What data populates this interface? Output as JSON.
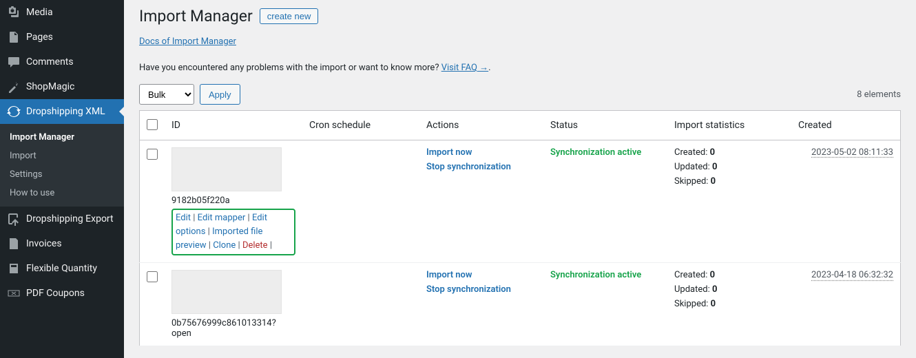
{
  "sidebar": {
    "items": [
      {
        "name": "media",
        "label": "Media",
        "icon": "media"
      },
      {
        "name": "pages",
        "label": "Pages",
        "icon": "page"
      },
      {
        "name": "comments",
        "label": "Comments",
        "icon": "comment"
      },
      {
        "name": "shopmagic",
        "label": "ShopMagic",
        "icon": "wand"
      },
      {
        "name": "dropshipping-xml",
        "label": "Dropshipping XML",
        "icon": "sync",
        "active": true
      },
      {
        "name": "dropshipping-export",
        "label": "Dropshipping Export",
        "icon": "export"
      },
      {
        "name": "invoices",
        "label": "Invoices",
        "icon": "doc"
      },
      {
        "name": "flexible-quantity",
        "label": "Flexible Quantity",
        "icon": "calc"
      },
      {
        "name": "pdf-coupons",
        "label": "PDF Coupons",
        "icon": "coupon"
      }
    ],
    "submenu": [
      {
        "label": "Import Manager",
        "current": true
      },
      {
        "label": "Import",
        "current": false
      },
      {
        "label": "Settings",
        "current": false
      },
      {
        "label": "How to use",
        "current": false
      }
    ]
  },
  "header": {
    "title": "Import Manager",
    "create_label": "create new",
    "docs_label": "Docs of Import Manager",
    "desc_pre": "Have you encountered any problems with the import or want to know more? ",
    "faq_label": "Visit FAQ →"
  },
  "toolbar": {
    "bulk_label": "Bulk",
    "apply_label": "Apply",
    "count_label": "8 elements"
  },
  "table": {
    "columns": {
      "id": "ID",
      "cron": "Cron schedule",
      "actions": "Actions",
      "status": "Status",
      "stats": "Import statistics",
      "created": "Created"
    },
    "action_labels": {
      "import_now": "Import now",
      "stop_sync": "Stop synchronization"
    },
    "row_action_labels": {
      "edit": "Edit",
      "edit_mapper": "Edit mapper",
      "edit_options": "Edit options",
      "imported_preview": "Imported file preview",
      "clone": "Clone",
      "delete": "Delete"
    },
    "stats_labels": {
      "created": "Created:",
      "updated": "Updated:",
      "skipped": "Skipped:"
    },
    "rows": [
      {
        "id": "9182b05f220a",
        "status": "Synchronization active",
        "stats": {
          "created": "0",
          "updated": "0",
          "skipped": "0"
        },
        "created": "2023-05-02 08:11:33",
        "highlight_actions": true
      },
      {
        "id": "0b75676999c861013314?open",
        "status": "Synchronization active",
        "stats": {
          "created": "0",
          "updated": "0",
          "skipped": "0"
        },
        "created": "2023-04-18 06:32:32",
        "highlight_actions": false
      }
    ]
  },
  "colors": {
    "sidebar_bg": "#1d2327",
    "accent": "#2271b1",
    "status_green": "#16a34a",
    "delete_red": "#b32d2e",
    "page_bg": "#f0f0f1",
    "border": "#c3c4c7"
  }
}
